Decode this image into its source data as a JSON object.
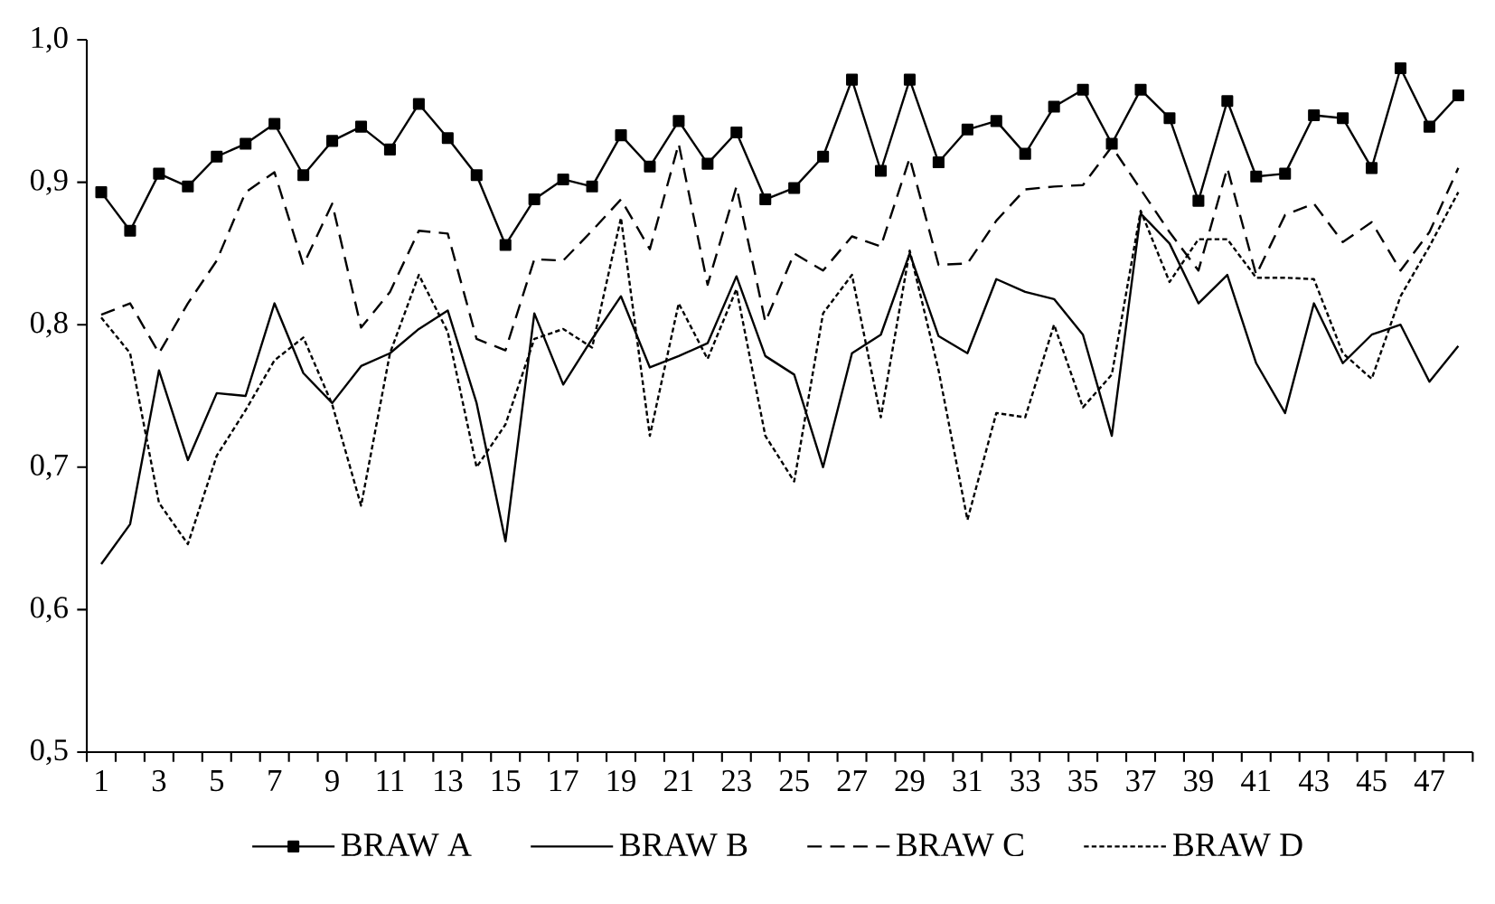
{
  "chart_data": {
    "type": "line",
    "categories": [
      "1",
      null,
      "3",
      null,
      "5",
      null,
      "7",
      null,
      "9",
      null,
      "11",
      null,
      "13",
      null,
      "15",
      null,
      "17",
      null,
      "19",
      null,
      "21",
      null,
      "23",
      null,
      "25",
      null,
      "27",
      null,
      "29",
      null,
      "31",
      null,
      "33",
      null,
      "35",
      null,
      "37",
      null,
      "39",
      null,
      "41",
      null,
      "43",
      null,
      "45",
      null,
      "47",
      null
    ],
    "ylim": [
      0.5,
      1.0
    ],
    "yticks": [
      {
        "value": 0.5,
        "label": "0,5"
      },
      {
        "value": 0.6,
        "label": "0,6"
      },
      {
        "value": 0.7,
        "label": "0,7"
      },
      {
        "value": 0.8,
        "label": "0,8"
      },
      {
        "value": 0.9,
        "label": "0,9"
      },
      {
        "value": 1.0,
        "label": "1,0"
      }
    ],
    "legend": "bottom",
    "grid": false,
    "series": [
      {
        "name": "BRAW A",
        "color": "#000000",
        "marker": "square",
        "line_style": "solid",
        "values": [
          0.893,
          0.866,
          0.906,
          0.897,
          0.918,
          0.927,
          0.941,
          0.905,
          0.929,
          0.939,
          0.923,
          0.955,
          0.931,
          0.905,
          0.856,
          0.888,
          0.902,
          0.897,
          0.933,
          0.911,
          0.943,
          0.913,
          0.935,
          0.888,
          0.896,
          0.918,
          0.972,
          0.908,
          0.972,
          0.914,
          0.937,
          0.943,
          0.92,
          0.953,
          0.965,
          0.927,
          0.965,
          0.945,
          0.887,
          0.957,
          0.904,
          0.906,
          0.947,
          0.945,
          0.91,
          0.98,
          0.939,
          0.961
        ]
      },
      {
        "name": "BRAW B",
        "color": "#000000",
        "marker": "none",
        "line_style": "solid",
        "values": [
          0.632,
          0.66,
          0.768,
          0.705,
          0.752,
          0.75,
          0.815,
          0.766,
          0.745,
          0.771,
          0.78,
          0.797,
          0.81,
          0.745,
          0.648,
          0.808,
          0.758,
          0.79,
          0.82,
          0.77,
          0.778,
          0.787,
          0.834,
          0.778,
          0.765,
          0.7,
          0.78,
          0.793,
          0.85,
          0.792,
          0.78,
          0.832,
          0.823,
          0.818,
          0.793,
          0.722,
          0.878,
          0.857,
          0.815,
          0.835,
          0.773,
          0.738,
          0.815,
          0.773,
          0.793,
          0.8,
          0.76,
          0.785
        ]
      },
      {
        "name": "BRAW C",
        "color": "#000000",
        "marker": "none",
        "line_style": "dashed",
        "values": [
          0.807,
          0.815,
          0.78,
          0.815,
          0.845,
          0.893,
          0.907,
          0.842,
          0.885,
          0.798,
          0.823,
          0.866,
          0.864,
          0.79,
          0.782,
          0.846,
          0.845,
          0.866,
          0.888,
          0.853,
          0.927,
          0.828,
          0.897,
          0.802,
          0.85,
          0.838,
          0.862,
          0.855,
          0.917,
          0.842,
          0.843,
          0.873,
          0.895,
          0.897,
          0.898,
          0.925,
          0.895,
          0.865,
          0.838,
          0.91,
          0.835,
          0.877,
          0.885,
          0.858,
          0.872,
          0.838,
          0.865,
          0.91
        ]
      },
      {
        "name": "BRAW D",
        "color": "#000000",
        "marker": "none",
        "line_style": "dotted",
        "values": [
          0.805,
          0.78,
          0.675,
          0.646,
          0.708,
          0.74,
          0.775,
          0.791,
          0.744,
          0.673,
          0.78,
          0.835,
          0.795,
          0.7,
          0.73,
          0.79,
          0.797,
          0.784,
          0.875,
          0.722,
          0.815,
          0.776,
          0.825,
          0.722,
          0.69,
          0.808,
          0.835,
          0.735,
          0.852,
          0.768,
          0.663,
          0.738,
          0.735,
          0.8,
          0.742,
          0.765,
          0.88,
          0.83,
          0.86,
          0.86,
          0.833,
          0.833,
          0.832,
          0.78,
          0.762,
          0.82,
          0.855,
          0.893
        ]
      }
    ]
  }
}
